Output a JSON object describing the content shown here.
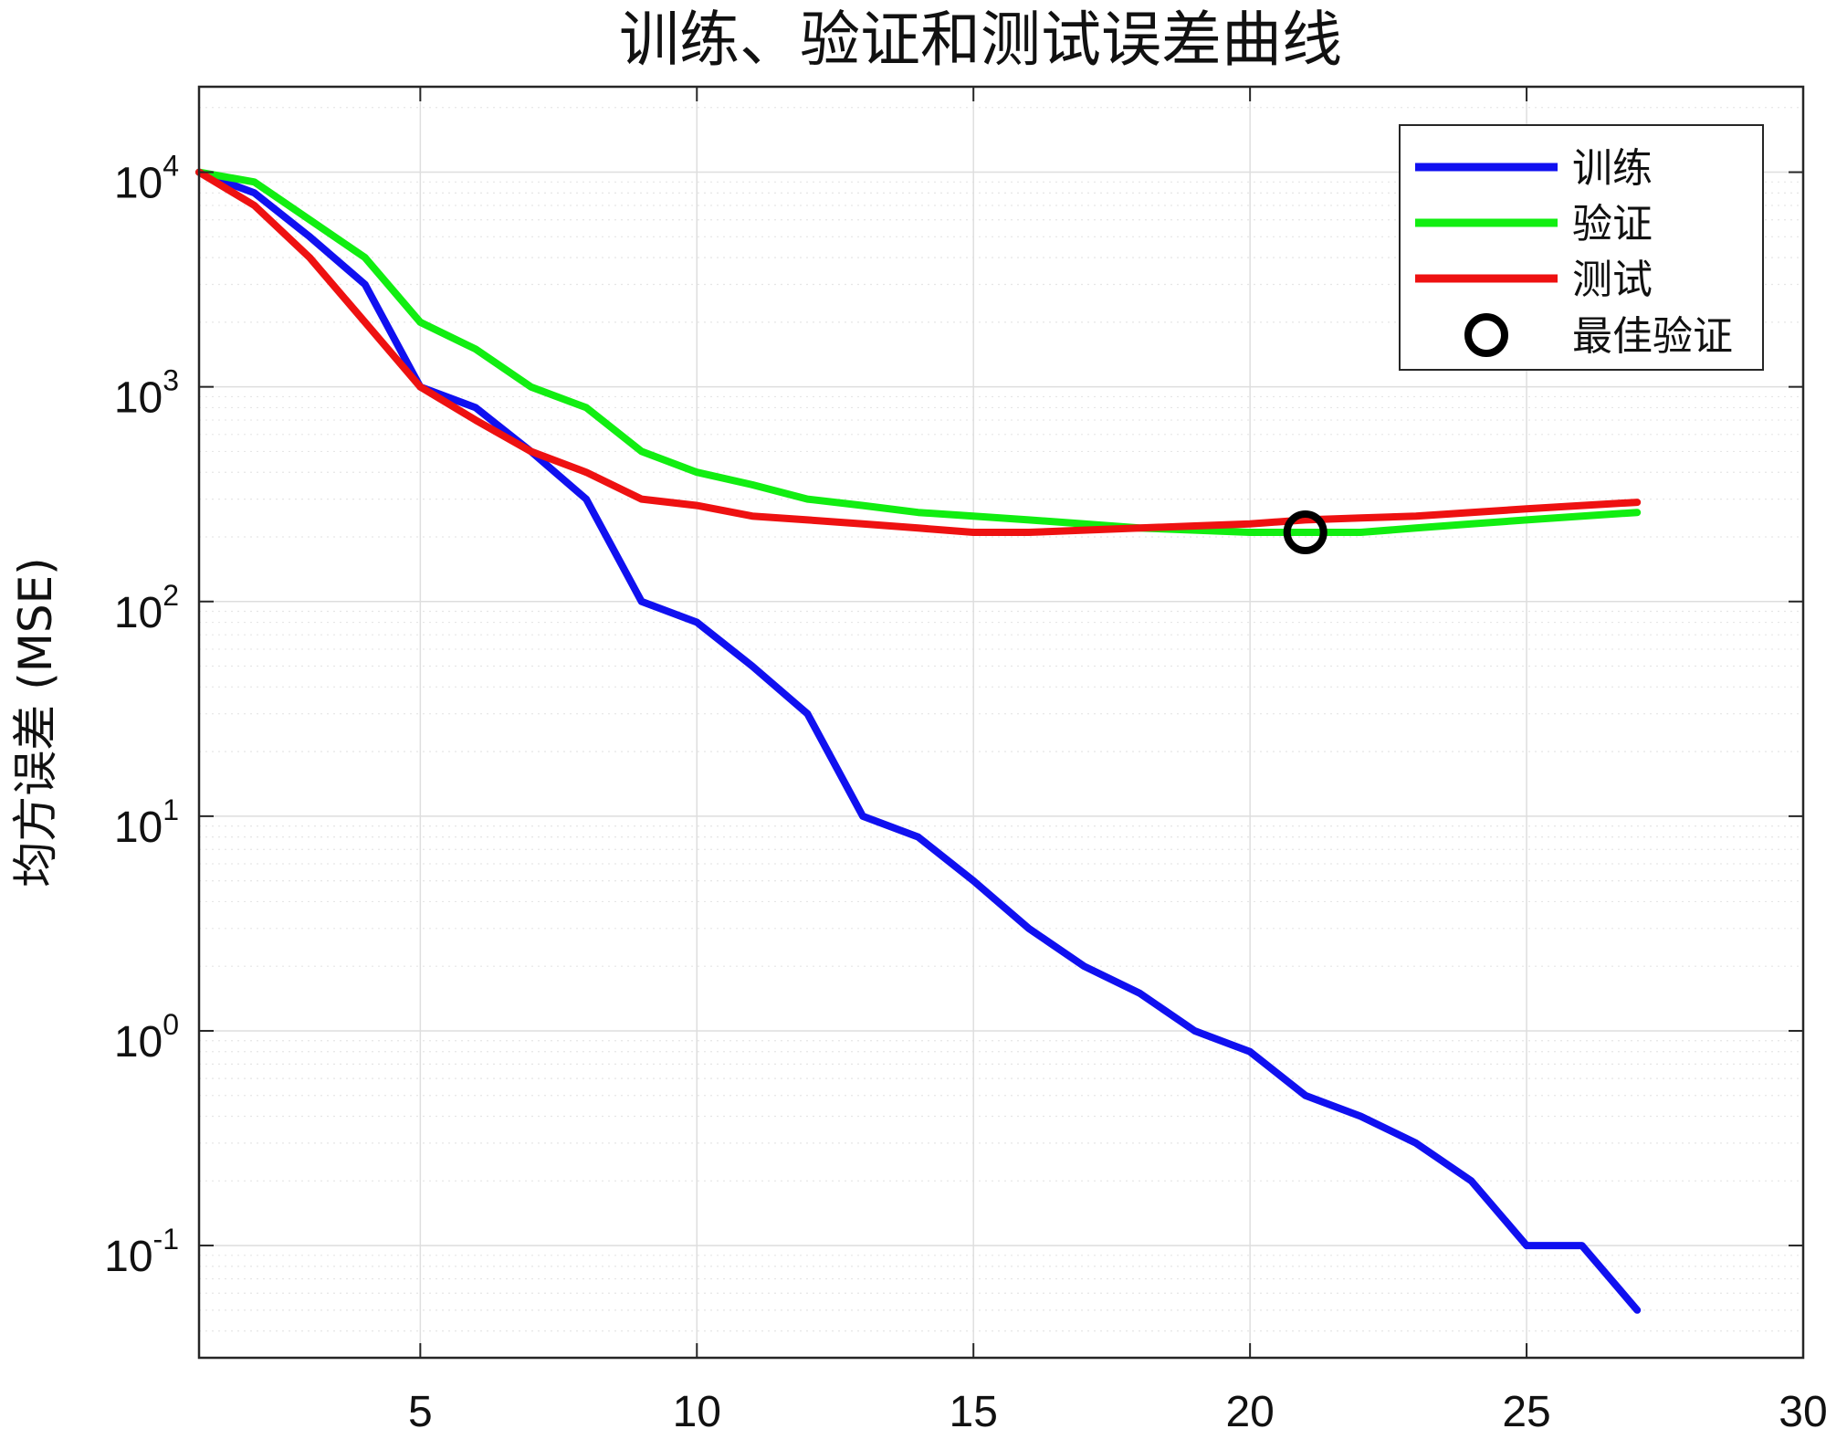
{
  "chart_data": {
    "type": "line",
    "title": "训练、验证和测试误差曲线",
    "xlabel": "",
    "ylabel": "均方误差 (MSE)",
    "xlim": [
      1,
      30
    ],
    "ylim": [
      0.03,
      25000
    ],
    "y_scale": "log",
    "grid": true,
    "legend_position": "top-right",
    "x_ticks": [
      5,
      10,
      15,
      20,
      25,
      30
    ],
    "y_ticks": [
      {
        "value": 0.1,
        "base": "10",
        "exp": "-1"
      },
      {
        "value": 1,
        "base": "10",
        "exp": "0"
      },
      {
        "value": 10,
        "base": "10",
        "exp": "1"
      },
      {
        "value": 100,
        "base": "10",
        "exp": "2"
      },
      {
        "value": 1000,
        "base": "10",
        "exp": "3"
      },
      {
        "value": 10000,
        "base": "10",
        "exp": "4"
      }
    ],
    "x": [
      1,
      2,
      3,
      4,
      5,
      6,
      7,
      8,
      9,
      10,
      11,
      12,
      13,
      14,
      15,
      16,
      17,
      18,
      19,
      20,
      21,
      22,
      23,
      24,
      25,
      26,
      27
    ],
    "series": [
      {
        "name": "训练",
        "color": "#1010f0",
        "values": [
          10000,
          8000,
          5000,
          3000,
          1000,
          800,
          500,
          300,
          100,
          80,
          50,
          30,
          10,
          8,
          5,
          3,
          2,
          1.5,
          1,
          0.8,
          0.5,
          0.4,
          0.3,
          0.2,
          0.1,
          0.1,
          0.05
        ]
      },
      {
        "name": "验证",
        "color": "#11ee11",
        "values": [
          10000,
          9000,
          6000,
          4000,
          2000,
          1500,
          1000,
          800,
          500,
          400,
          350,
          300,
          280,
          260,
          250,
          240,
          230,
          220,
          215,
          210,
          210,
          210,
          220,
          230,
          240,
          250,
          260
        ]
      },
      {
        "name": "测试",
        "color": "#ee1111",
        "values": [
          10000,
          7000,
          4000,
          2000,
          1000,
          700,
          500,
          400,
          300,
          280,
          250,
          240,
          230,
          220,
          210,
          210,
          215,
          220,
          225,
          230,
          240,
          245,
          250,
          260,
          270,
          280,
          290
        ]
      }
    ],
    "best_validation": {
      "name": "最佳验证",
      "x": 21,
      "y": 210,
      "marker": "circle",
      "color": "#000000"
    }
  }
}
